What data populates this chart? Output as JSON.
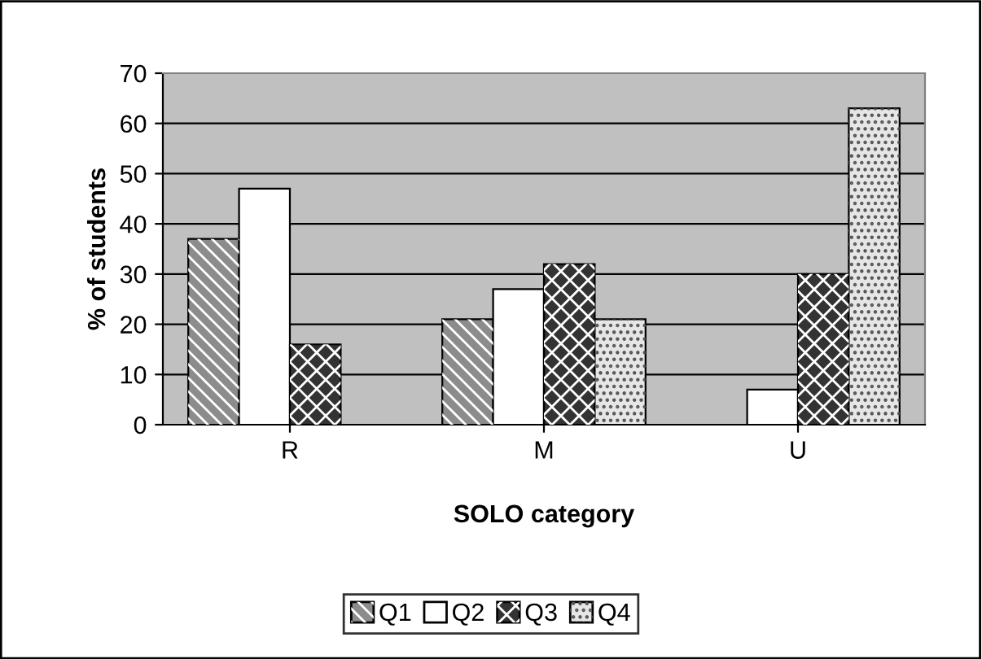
{
  "chart_data": {
    "type": "bar",
    "xlabel": "SOLO category",
    "ylabel": "% of students",
    "categories": [
      "R",
      "M",
      "U"
    ],
    "series": [
      {
        "name": "Q1",
        "color": "#8c8c8c",
        "values": [
          37,
          21,
          null
        ]
      },
      {
        "name": "Q2",
        "color": "#ffffff",
        "values": [
          47,
          27,
          7
        ]
      },
      {
        "name": "Q3",
        "color": "#333333",
        "values": [
          16,
          32,
          30
        ]
      },
      {
        "name": "Q4",
        "color": "#e6e6e6",
        "values": [
          null,
          21,
          63
        ]
      }
    ],
    "ylim": [
      0,
      70
    ],
    "yticks": [
      0,
      10,
      20,
      30,
      40,
      50,
      60,
      70
    ],
    "grid": "y",
    "legend": "bottom"
  }
}
